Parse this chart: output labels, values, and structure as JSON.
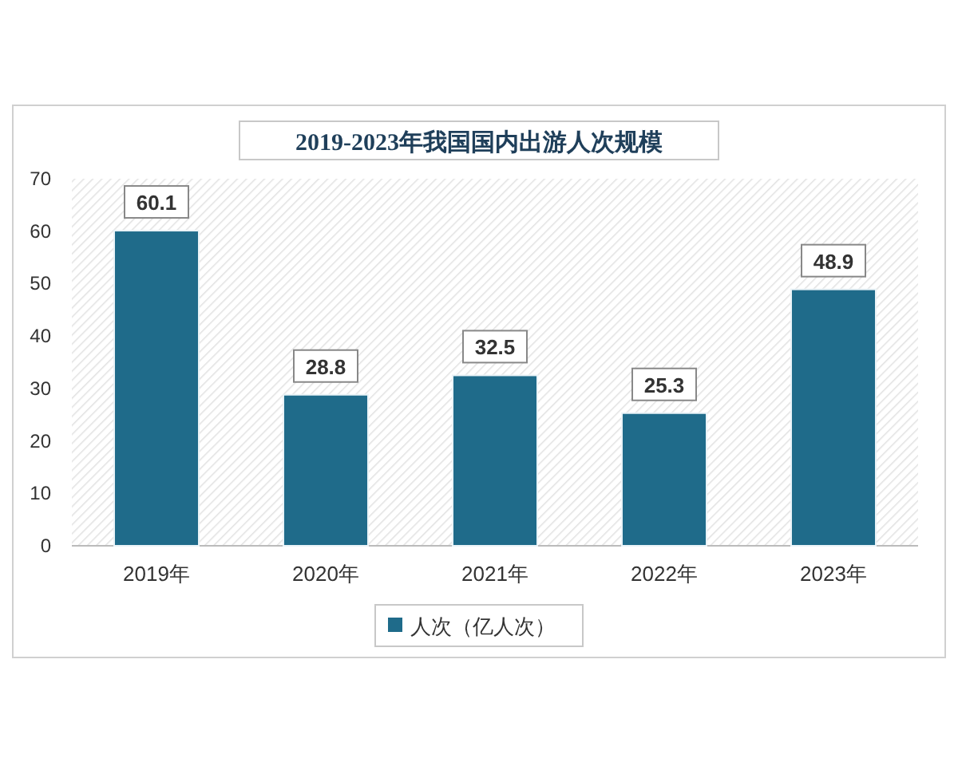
{
  "chart_data": {
    "type": "bar",
    "title": "2019-2023年我国国内出游人次规模",
    "categories": [
      "2019年",
      "2020年",
      "2021年",
      "2022年",
      "2023年"
    ],
    "series": [
      {
        "name": "人次（亿人次）",
        "color": "#1f6b8a",
        "values": [
          60.1,
          28.8,
          32.5,
          25.3,
          48.9
        ]
      }
    ],
    "ylim": [
      0,
      70
    ],
    "yticks": [
      0,
      10,
      20,
      30,
      40,
      50,
      60,
      70
    ],
    "data_labels": true,
    "legend": "bottom"
  }
}
